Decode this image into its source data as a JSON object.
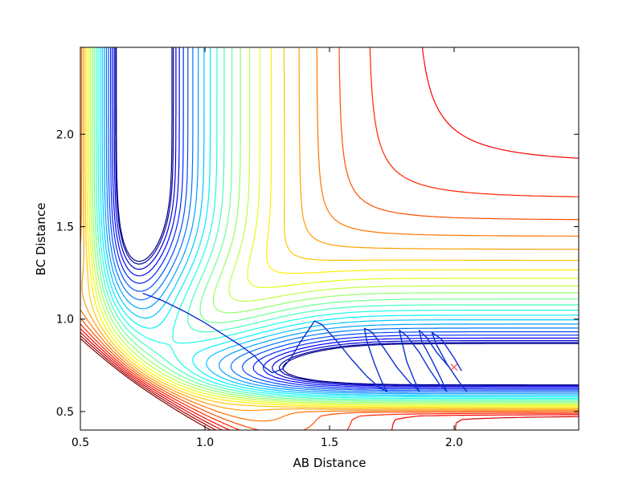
{
  "chart_data": {
    "type": "contour",
    "title": "",
    "xlabel": "AB Distance",
    "ylabel": "BC Distance",
    "xlim": [
      0.5,
      2.5
    ],
    "ylim": [
      0.4,
      2.47
    ],
    "xticks": [
      0.5,
      1.0,
      1.5,
      2.0
    ],
    "yticks": [
      0.5,
      1.0,
      1.5,
      2.0
    ],
    "xtick_labels": [
      "0.5",
      "1.0",
      "1.5",
      "2.0"
    ],
    "ytick_labels": [
      "0.5",
      "1.0",
      "1.5",
      "2.0"
    ],
    "grid": false,
    "legend": "none",
    "colormap": "jet",
    "contour_levels": 26,
    "surface": {
      "description_free_params": {
        "D": 1.0,
        "a": 2.6,
        "re": 0.74,
        "mix": 0.55,
        "saddle_level": 0.18
      }
    },
    "trajectory": {
      "color": "#0b2fd0",
      "points": [
        [
          0.75,
          1.14
        ],
        [
          0.83,
          1.1
        ],
        [
          0.92,
          1.04
        ],
        [
          1.0,
          0.98
        ],
        [
          1.07,
          0.92
        ],
        [
          1.14,
          0.86
        ],
        [
          1.2,
          0.8
        ],
        [
          1.24,
          0.74
        ],
        [
          1.27,
          0.71
        ],
        [
          1.31,
          0.73
        ],
        [
          1.35,
          0.8
        ],
        [
          1.38,
          0.87
        ],
        [
          1.41,
          0.93
        ],
        [
          1.44,
          0.99
        ],
        [
          1.47,
          0.97
        ],
        [
          1.53,
          0.88
        ],
        [
          1.59,
          0.78
        ],
        [
          1.65,
          0.69
        ],
        [
          1.7,
          0.63
        ],
        [
          1.73,
          0.61
        ],
        [
          1.71,
          0.66
        ],
        [
          1.68,
          0.76
        ],
        [
          1.65,
          0.88
        ],
        [
          1.64,
          0.95
        ],
        [
          1.67,
          0.93
        ],
        [
          1.72,
          0.84
        ],
        [
          1.77,
          0.74
        ],
        [
          1.82,
          0.66
        ],
        [
          1.86,
          0.61
        ],
        [
          1.84,
          0.67
        ],
        [
          1.81,
          0.77
        ],
        [
          1.79,
          0.88
        ],
        [
          1.78,
          0.94
        ],
        [
          1.81,
          0.91
        ],
        [
          1.86,
          0.82
        ],
        [
          1.9,
          0.73
        ],
        [
          1.94,
          0.65
        ],
        [
          1.97,
          0.61
        ],
        [
          1.95,
          0.67
        ],
        [
          1.91,
          0.78
        ],
        [
          1.87,
          0.88
        ],
        [
          1.86,
          0.94
        ],
        [
          1.89,
          0.9
        ],
        [
          1.93,
          0.82
        ],
        [
          1.98,
          0.74
        ],
        [
          2.02,
          0.66
        ],
        [
          2.05,
          0.61
        ],
        [
          2.02,
          0.66
        ],
        [
          1.97,
          0.76
        ],
        [
          1.93,
          0.86
        ],
        [
          1.91,
          0.93
        ],
        [
          1.95,
          0.89
        ],
        [
          2.0,
          0.79
        ],
        [
          2.03,
          0.72
        ]
      ]
    },
    "end_marker": {
      "x": 2.0,
      "y": 0.74,
      "symbol": "x",
      "color": "#ff3030"
    }
  }
}
